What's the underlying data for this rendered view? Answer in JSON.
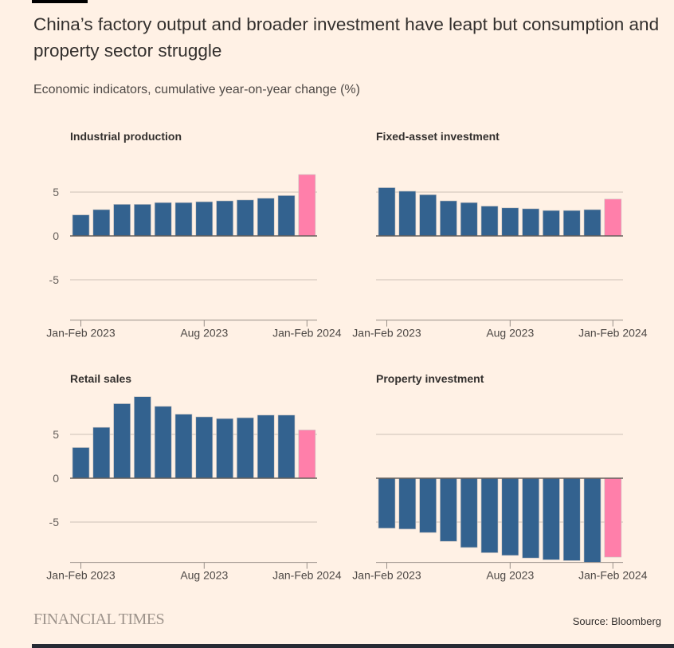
{
  "title": "China’s factory output and broader investment have leapt but consumption and property sector struggle",
  "subtitle": "Economic indicators, cumulative year-on-year change (%)",
  "source": "Source: Bloomberg",
  "logo": "FINANCIAL TIMES",
  "colors": {
    "background": "#fff1e5",
    "bar": "#33628f",
    "highlight": "#ff7faa"
  },
  "chart_data": [
    {
      "type": "bar",
      "title": "Industrial production",
      "categories": [
        "Jan-Feb 2023",
        "Mar 2023",
        "Apr 2023",
        "May 2023",
        "Jun 2023",
        "Jul 2023",
        "Aug 2023",
        "Sep 2023",
        "Oct 2023",
        "Nov 2023",
        "Dec 2023",
        "Jan-Feb 2024"
      ],
      "values": [
        2.4,
        3.0,
        3.6,
        3.6,
        3.8,
        3.8,
        3.9,
        4.0,
        4.1,
        4.3,
        4.6,
        7.0
      ],
      "x_tick_labels": [
        "Jan-Feb 2023",
        "Aug 2023",
        "Jan-Feb 2024"
      ],
      "y_tick_labels": [
        "5",
        "0",
        "-5"
      ],
      "yticks": [
        5,
        0,
        -5
      ],
      "ylim": [
        -9.6,
        9.5
      ],
      "highlight_last": true
    },
    {
      "type": "bar",
      "title": "Fixed-asset investment",
      "categories": [
        "Jan-Feb 2023",
        "Mar 2023",
        "Apr 2023",
        "May 2023",
        "Jun 2023",
        "Jul 2023",
        "Aug 2023",
        "Sep 2023",
        "Oct 2023",
        "Nov 2023",
        "Dec 2023",
        "Jan-Feb 2024"
      ],
      "values": [
        5.5,
        5.1,
        4.7,
        4.0,
        3.8,
        3.4,
        3.2,
        3.1,
        2.9,
        2.9,
        3.0,
        4.2
      ],
      "x_tick_labels": [
        "Jan-Feb 2023",
        "Aug 2023",
        "Jan-Feb 2024"
      ],
      "y_tick_labels": [],
      "yticks": [
        5,
        0,
        -5
      ],
      "ylim": [
        -9.6,
        9.5
      ],
      "highlight_last": true
    },
    {
      "type": "bar",
      "title": "Retail sales",
      "categories": [
        "Jan-Feb 2023",
        "Mar 2023",
        "Apr 2023",
        "May 2023",
        "Jun 2023",
        "Jul 2023",
        "Aug 2023",
        "Sep 2023",
        "Oct 2023",
        "Nov 2023",
        "Dec 2023",
        "Jan-Feb 2024"
      ],
      "values": [
        3.5,
        5.8,
        8.5,
        9.3,
        8.2,
        7.3,
        7.0,
        6.8,
        6.9,
        7.2,
        7.2,
        5.5
      ],
      "x_tick_labels": [
        "Jan-Feb 2023",
        "Aug 2023",
        "Jan-Feb 2024"
      ],
      "y_tick_labels": [
        "5",
        "0",
        "-5"
      ],
      "yticks": [
        5,
        0,
        -5
      ],
      "ylim": [
        -9.6,
        9.5
      ],
      "highlight_last": true
    },
    {
      "type": "bar",
      "title": "Property investment",
      "categories": [
        "Jan-Feb 2023",
        "Mar 2023",
        "Apr 2023",
        "May 2023",
        "Jun 2023",
        "Jul 2023",
        "Aug 2023",
        "Sep 2023",
        "Oct 2023",
        "Nov 2023",
        "Dec 2023",
        "Jan-Feb 2024"
      ],
      "values": [
        -5.7,
        -5.8,
        -6.2,
        -7.2,
        -7.9,
        -8.5,
        -8.8,
        -9.1,
        -9.3,
        -9.4,
        -9.6,
        -9.0
      ],
      "x_tick_labels": [
        "Jan-Feb 2023",
        "Aug 2023",
        "Jan-Feb 2024"
      ],
      "y_tick_labels": [],
      "yticks": [
        5,
        0,
        -5
      ],
      "ylim": [
        -9.6,
        9.5
      ],
      "highlight_last": true
    }
  ]
}
